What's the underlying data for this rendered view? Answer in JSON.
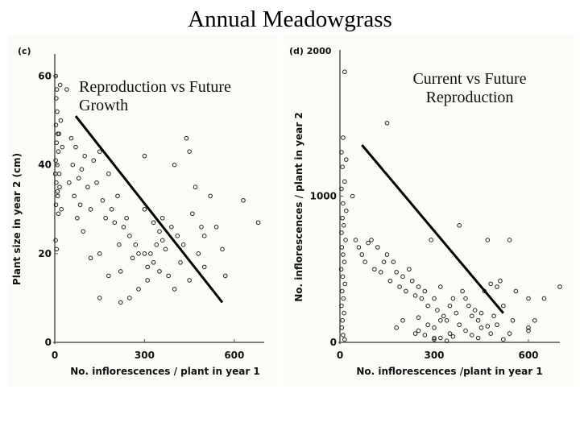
{
  "page": {
    "title": "Annual Meadowgrass"
  },
  "chart_data": [
    {
      "type": "scatter",
      "panel_label": "(c)",
      "subtitle": "Reproduction vs Future Growth",
      "xlabel": "No. inflorescences / plant in year 1",
      "ylabel": "Plant size in year 2  (cm)",
      "xlim": [
        0,
        700
      ],
      "ylim": [
        0,
        65
      ],
      "xticks": [
        0,
        300,
        600
      ],
      "yticks": [
        0,
        20,
        40,
        60
      ],
      "grid": false,
      "trend_line": {
        "x": [
          70,
          560
        ],
        "y": [
          51,
          9
        ]
      },
      "points": [
        [
          3,
          60
        ],
        [
          5,
          55
        ],
        [
          8,
          52
        ],
        [
          4,
          49
        ],
        [
          10,
          47
        ],
        [
          6,
          45
        ],
        [
          12,
          43
        ],
        [
          3,
          41
        ],
        [
          8,
          40
        ],
        [
          15,
          38
        ],
        [
          5,
          36
        ],
        [
          9,
          34
        ],
        [
          4,
          31
        ],
        [
          12,
          29
        ],
        [
          7,
          57
        ],
        [
          18,
          58
        ],
        [
          20,
          50
        ],
        [
          14,
          47
        ],
        [
          2,
          38
        ],
        [
          25,
          44
        ],
        [
          3,
          23
        ],
        [
          6,
          21
        ],
        [
          10,
          33
        ],
        [
          16,
          35
        ],
        [
          22,
          30
        ],
        [
          40,
          57
        ],
        [
          55,
          46
        ],
        [
          60,
          40
        ],
        [
          48,
          36
        ],
        [
          70,
          44
        ],
        [
          80,
          37
        ],
        [
          65,
          33
        ],
        [
          85,
          31
        ],
        [
          90,
          39
        ],
        [
          100,
          42
        ],
        [
          75,
          28
        ],
        [
          95,
          25
        ],
        [
          110,
          35
        ],
        [
          120,
          30
        ],
        [
          130,
          41
        ],
        [
          140,
          36
        ],
        [
          150,
          43
        ],
        [
          160,
          32
        ],
        [
          170,
          28
        ],
        [
          180,
          38
        ],
        [
          190,
          30
        ],
        [
          200,
          27
        ],
        [
          210,
          33
        ],
        [
          215,
          22
        ],
        [
          230,
          26
        ],
        [
          240,
          28
        ],
        [
          250,
          24
        ],
        [
          260,
          19
        ],
        [
          270,
          22
        ],
        [
          280,
          20
        ],
        [
          300,
          42
        ],
        [
          300,
          30
        ],
        [
          310,
          17
        ],
        [
          320,
          20
        ],
        [
          330,
          18
        ],
        [
          340,
          22
        ],
        [
          350,
          25
        ],
        [
          360,
          28
        ],
        [
          370,
          21
        ],
        [
          380,
          15
        ],
        [
          390,
          26
        ],
        [
          400,
          40
        ],
        [
          410,
          24
        ],
        [
          420,
          18
        ],
        [
          430,
          22
        ],
        [
          440,
          46
        ],
        [
          450,
          43
        ],
        [
          460,
          29
        ],
        [
          470,
          35
        ],
        [
          480,
          20
        ],
        [
          490,
          26
        ],
        [
          500,
          24
        ],
        [
          520,
          33
        ],
        [
          540,
          26
        ],
        [
          560,
          21
        ],
        [
          570,
          15
        ],
        [
          630,
          32
        ],
        [
          680,
          27
        ],
        [
          150,
          20
        ],
        [
          180,
          15
        ],
        [
          220,
          16
        ],
        [
          250,
          10
        ],
        [
          280,
          12
        ],
        [
          310,
          14
        ],
        [
          350,
          16
        ],
        [
          400,
          12
        ],
        [
          450,
          14
        ],
        [
          500,
          17
        ],
        [
          150,
          10
        ],
        [
          220,
          9
        ],
        [
          120,
          19
        ],
        [
          300,
          20
        ],
        [
          330,
          27
        ],
        [
          360,
          23
        ]
      ]
    },
    {
      "type": "scatter",
      "panel_label": "(d) 2000",
      "subtitle": "Current vs Future Reproduction",
      "xlabel": "No. inflorescences /plant in year 1",
      "ylabel": "No. inflorescences / plant in year 2",
      "xlim": [
        0,
        700
      ],
      "ylim": [
        0,
        2000
      ],
      "xticks": [
        0,
        300,
        600
      ],
      "yticks": [
        0,
        1000
      ],
      "grid": false,
      "trend_line": {
        "x": [
          70,
          520
        ],
        "y": [
          1350,
          200
        ]
      },
      "points": [
        [
          15,
          1850
        ],
        [
          150,
          1500
        ],
        [
          10,
          1400
        ],
        [
          5,
          1300
        ],
        [
          20,
          1250
        ],
        [
          8,
          1200
        ],
        [
          15,
          1100
        ],
        [
          5,
          1050
        ],
        [
          10,
          950
        ],
        [
          20,
          900
        ],
        [
          8,
          850
        ],
        [
          12,
          800
        ],
        [
          5,
          750
        ],
        [
          18,
          700
        ],
        [
          6,
          650
        ],
        [
          10,
          600
        ],
        [
          14,
          550
        ],
        [
          4,
          500
        ],
        [
          9,
          450
        ],
        [
          16,
          400
        ],
        [
          7,
          350
        ],
        [
          11,
          300
        ],
        [
          5,
          250
        ],
        [
          13,
          200
        ],
        [
          8,
          150
        ],
        [
          6,
          100
        ],
        [
          10,
          50
        ],
        [
          15,
          20
        ],
        [
          40,
          1000
        ],
        [
          50,
          700
        ],
        [
          60,
          650
        ],
        [
          70,
          600
        ],
        [
          80,
          550
        ],
        [
          90,
          680
        ],
        [
          100,
          700
        ],
        [
          110,
          500
        ],
        [
          120,
          650
        ],
        [
          130,
          480
        ],
        [
          140,
          550
        ],
        [
          150,
          600
        ],
        [
          160,
          420
        ],
        [
          170,
          550
        ],
        [
          180,
          480
        ],
        [
          190,
          380
        ],
        [
          200,
          450
        ],
        [
          210,
          350
        ],
        [
          220,
          500
        ],
        [
          230,
          420
        ],
        [
          240,
          320
        ],
        [
          250,
          380
        ],
        [
          260,
          300
        ],
        [
          270,
          350
        ],
        [
          280,
          250
        ],
        [
          290,
          700
        ],
        [
          300,
          300
        ],
        [
          310,
          220
        ],
        [
          320,
          380
        ],
        [
          330,
          180
        ],
        [
          340,
          150
        ],
        [
          350,
          250
        ],
        [
          360,
          300
        ],
        [
          370,
          200
        ],
        [
          380,
          800
        ],
        [
          390,
          350
        ],
        [
          400,
          300
        ],
        [
          410,
          250
        ],
        [
          420,
          180
        ],
        [
          430,
          220
        ],
        [
          440,
          150
        ],
        [
          450,
          200
        ],
        [
          460,
          350
        ],
        [
          470,
          700
        ],
        [
          480,
          400
        ],
        [
          490,
          180
        ],
        [
          500,
          380
        ],
        [
          510,
          420
        ],
        [
          520,
          250
        ],
        [
          540,
          700
        ],
        [
          560,
          350
        ],
        [
          600,
          100
        ],
        [
          620,
          150
        ],
        [
          650,
          300
        ],
        [
          700,
          380
        ],
        [
          180,
          100
        ],
        [
          200,
          150
        ],
        [
          250,
          80
        ],
        [
          270,
          50
        ],
        [
          300,
          100
        ],
        [
          320,
          30
        ],
        [
          350,
          60
        ],
        [
          380,
          120
        ],
        [
          400,
          80
        ],
        [
          420,
          50
        ],
        [
          450,
          100
        ],
        [
          480,
          60
        ],
        [
          500,
          120
        ],
        [
          550,
          150
        ],
        [
          600,
          80
        ],
        [
          280,
          120
        ],
        [
          240,
          60
        ],
        [
          320,
          150
        ],
        [
          360,
          40
        ],
        [
          440,
          30
        ],
        [
          300,
          20
        ],
        [
          340,
          10
        ],
        [
          250,
          170
        ],
        [
          300,
          30
        ],
        [
          470,
          110
        ],
        [
          520,
          20
        ],
        [
          540,
          60
        ],
        [
          600,
          300
        ]
      ]
    }
  ]
}
